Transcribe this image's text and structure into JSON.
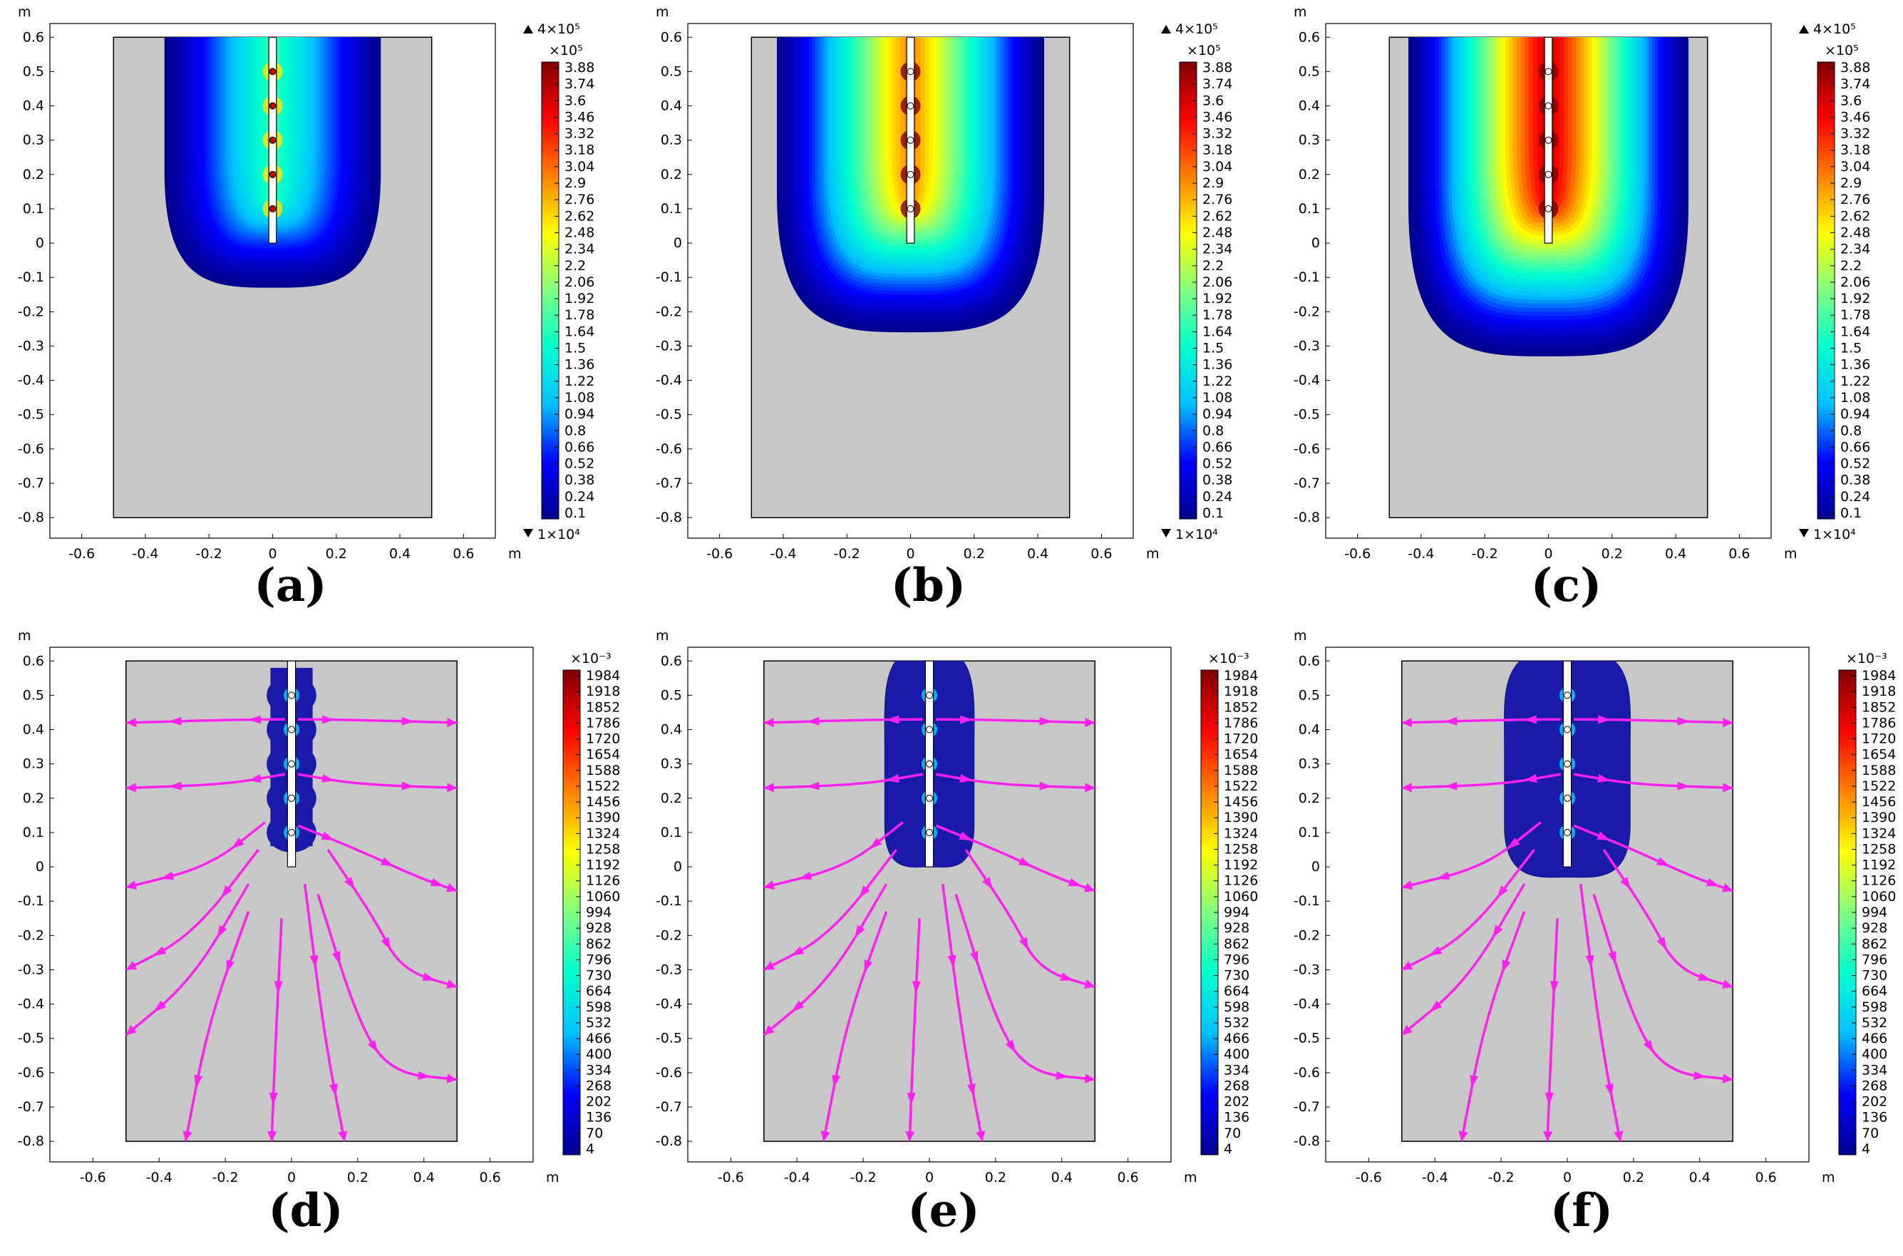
{
  "chart_data": [
    {
      "type": "heatmap",
      "panel_label": "(a)",
      "unit": "m",
      "x": {
        "range": [
          -0.7,
          0.7
        ],
        "ticks": [
          "-0.6",
          "-0.4",
          "-0.2",
          "0",
          "0.2",
          "0.4",
          "0.6"
        ]
      },
      "y": {
        "range": [
          -0.86,
          0.64
        ],
        "ticks": [
          "0.6",
          "0.5",
          "0.4",
          "0.3",
          "0.2",
          "0.1",
          "0",
          "-0.1",
          "-0.2",
          "-0.3",
          "-0.4",
          "-0.5",
          "-0.6",
          "-0.7",
          "-0.8"
        ]
      },
      "domain": {
        "x": [
          -0.5,
          0.5
        ],
        "y": [
          -0.8,
          0.6
        ]
      },
      "colorbar": {
        "max_marker": "4×10⁵",
        "scale": "×10⁵",
        "min_marker": "1×10⁴",
        "labels": [
          "3.88",
          "3.74",
          "3.6",
          "3.46",
          "3.32",
          "3.18",
          "3.04",
          "2.9",
          "2.76",
          "2.62",
          "2.48",
          "2.34",
          "2.2",
          "2.06",
          "1.92",
          "1.78",
          "1.64",
          "1.5",
          "1.36",
          "1.22",
          "1.08",
          "0.94",
          "0.8",
          "0.66",
          "0.52",
          "0.38",
          "0.24",
          "0.1"
        ]
      },
      "field": {
        "halfwidth_m": 0.34,
        "bottom_m": -0.13,
        "intensity": 0.45
      },
      "sources_y": [
        0.5,
        0.4,
        0.3,
        0.2,
        0.1
      ]
    },
    {
      "type": "heatmap",
      "panel_label": "(b)",
      "unit": "m",
      "x": {
        "range": [
          -0.7,
          0.7
        ],
        "ticks": [
          "-0.6",
          "-0.4",
          "-0.2",
          "0",
          "0.2",
          "0.4",
          "0.6"
        ]
      },
      "y": {
        "range": [
          -0.86,
          0.64
        ],
        "ticks": [
          "0.6",
          "0.5",
          "0.4",
          "0.3",
          "0.2",
          "0.1",
          "0",
          "-0.1",
          "-0.2",
          "-0.3",
          "-0.4",
          "-0.5",
          "-0.6",
          "-0.7",
          "-0.8"
        ]
      },
      "domain": {
        "x": [
          -0.5,
          0.5
        ],
        "y": [
          -0.8,
          0.6
        ]
      },
      "colorbar": {
        "max_marker": "4×10⁵",
        "scale": "×10⁵",
        "min_marker": "1×10⁴",
        "labels": [
          "3.88",
          "3.74",
          "3.6",
          "3.46",
          "3.32",
          "3.18",
          "3.04",
          "2.9",
          "2.76",
          "2.62",
          "2.48",
          "2.34",
          "2.2",
          "2.06",
          "1.92",
          "1.78",
          "1.64",
          "1.5",
          "1.36",
          "1.22",
          "1.08",
          "0.94",
          "0.8",
          "0.66",
          "0.52",
          "0.38",
          "0.24",
          "0.1"
        ]
      },
      "field": {
        "halfwidth_m": 0.42,
        "bottom_m": -0.26,
        "intensity": 0.8
      },
      "sources_y": [
        0.5,
        0.4,
        0.3,
        0.2,
        0.1
      ]
    },
    {
      "type": "heatmap",
      "panel_label": "(c)",
      "unit": "m",
      "x": {
        "range": [
          -0.7,
          0.7
        ],
        "ticks": [
          "-0.6",
          "-0.4",
          "-0.2",
          "0",
          "0.2",
          "0.4",
          "0.6"
        ]
      },
      "y": {
        "range": [
          -0.86,
          0.64
        ],
        "ticks": [
          "0.6",
          "0.5",
          "0.4",
          "0.3",
          "0.2",
          "0.1",
          "0",
          "-0.1",
          "-0.2",
          "-0.3",
          "-0.4",
          "-0.5",
          "-0.6",
          "-0.7",
          "-0.8"
        ]
      },
      "domain": {
        "x": [
          -0.5,
          0.5
        ],
        "y": [
          -0.8,
          0.6
        ]
      },
      "colorbar": {
        "max_marker": "4×10⁵",
        "scale": "×10⁵",
        "min_marker": "1×10⁴",
        "labels": [
          "3.88",
          "3.74",
          "3.6",
          "3.46",
          "3.32",
          "3.18",
          "3.04",
          "2.9",
          "2.76",
          "2.62",
          "2.48",
          "2.34",
          "2.2",
          "2.06",
          "1.92",
          "1.78",
          "1.64",
          "1.5",
          "1.36",
          "1.22",
          "1.08",
          "0.94",
          "0.8",
          "0.66",
          "0.52",
          "0.38",
          "0.24",
          "0.1"
        ]
      },
      "field": {
        "halfwidth_m": 0.44,
        "bottom_m": -0.33,
        "intensity": 1.0
      },
      "sources_y": [
        0.5,
        0.4,
        0.3,
        0.2,
        0.1
      ]
    },
    {
      "type": "heatmap",
      "panel_label": "(d)",
      "unit": "m",
      "x": {
        "range": [
          -0.73,
          0.73
        ],
        "ticks": [
          "-0.6",
          "-0.4",
          "-0.2",
          "0",
          "0.2",
          "0.4",
          "0.6"
        ]
      },
      "y": {
        "range": [
          -0.86,
          0.64
        ],
        "ticks": [
          "0.6",
          "0.5",
          "0.4",
          "0.3",
          "0.2",
          "0.1",
          "0",
          "-0.1",
          "-0.2",
          "-0.3",
          "-0.4",
          "-0.5",
          "-0.6",
          "-0.7",
          "-0.8"
        ]
      },
      "domain": {
        "x": [
          -0.5,
          0.5
        ],
        "y": [
          -0.8,
          0.6
        ]
      },
      "colorbar": {
        "scale": "×10⁻³",
        "labels": [
          "1984",
          "1918",
          "1852",
          "1786",
          "1720",
          "1654",
          "1588",
          "1522",
          "1456",
          "1390",
          "1324",
          "1258",
          "1192",
          "1126",
          "1060",
          "994",
          "928",
          "862",
          "796",
          "730",
          "664",
          "598",
          "532",
          "466",
          "400",
          "334",
          "268",
          "202",
          "136",
          "70",
          "4"
        ]
      },
      "zone": {
        "type": "beads",
        "halfwidth_m": 0.075,
        "bottom_m": 0.06
      },
      "sources_y": [
        0.5,
        0.4,
        0.3,
        0.2,
        0.1
      ],
      "streamlines": [
        [
          [
            0.02,
            0.43
          ],
          [
            0.2,
            0.428
          ],
          [
            0.5,
            0.42
          ]
        ],
        [
          [
            -0.02,
            0.43
          ],
          [
            -0.2,
            0.428
          ],
          [
            -0.5,
            0.42
          ]
        ],
        [
          [
            0.02,
            0.27
          ],
          [
            0.2,
            0.24
          ],
          [
            0.5,
            0.23
          ]
        ],
        [
          [
            -0.02,
            0.27
          ],
          [
            -0.2,
            0.24
          ],
          [
            -0.5,
            0.23
          ]
        ],
        [
          [
            0.02,
            0.12
          ],
          [
            0.2,
            0.05
          ],
          [
            0.38,
            -0.03
          ],
          [
            0.5,
            -0.07
          ]
        ],
        [
          [
            -0.08,
            0.13
          ],
          [
            -0.25,
            0.0
          ],
          [
            -0.5,
            -0.06
          ]
        ],
        [
          [
            -0.1,
            0.05
          ],
          [
            -0.3,
            -0.2
          ],
          [
            -0.5,
            -0.3
          ]
        ],
        [
          [
            -0.13,
            -0.05
          ],
          [
            -0.3,
            -0.33
          ],
          [
            -0.5,
            -0.49
          ]
        ],
        [
          [
            -0.13,
            -0.13
          ],
          [
            -0.25,
            -0.45
          ],
          [
            -0.32,
            -0.8
          ]
        ],
        [
          [
            -0.03,
            -0.15
          ],
          [
            -0.05,
            -0.55
          ],
          [
            -0.06,
            -0.8
          ]
        ],
        [
          [
            0.04,
            -0.05
          ],
          [
            0.1,
            -0.5
          ],
          [
            0.16,
            -0.8
          ]
        ],
        [
          [
            0.08,
            -0.08
          ],
          [
            0.2,
            -0.45
          ],
          [
            0.3,
            -0.6
          ],
          [
            0.5,
            -0.62
          ]
        ],
        [
          [
            0.11,
            0.05
          ],
          [
            0.25,
            -0.15
          ],
          [
            0.33,
            -0.3
          ],
          [
            0.5,
            -0.35
          ]
        ]
      ]
    },
    {
      "type": "heatmap",
      "panel_label": "(e)",
      "unit": "m",
      "x": {
        "range": [
          -0.73,
          0.73
        ],
        "ticks": [
          "-0.6",
          "-0.4",
          "-0.2",
          "0",
          "0.2",
          "0.4",
          "0.6"
        ]
      },
      "y": {
        "range": [
          -0.86,
          0.64
        ],
        "ticks": [
          "0.6",
          "0.5",
          "0.4",
          "0.3",
          "0.2",
          "0.1",
          "0",
          "-0.1",
          "-0.2",
          "-0.3",
          "-0.4",
          "-0.5",
          "-0.6",
          "-0.7",
          "-0.8"
        ]
      },
      "domain": {
        "x": [
          -0.5,
          0.5
        ],
        "y": [
          -0.8,
          0.6
        ]
      },
      "colorbar": {
        "scale": "×10⁻³",
        "labels": [
          "1984",
          "1918",
          "1852",
          "1786",
          "1720",
          "1654",
          "1588",
          "1522",
          "1456",
          "1390",
          "1324",
          "1258",
          "1192",
          "1126",
          "1060",
          "994",
          "928",
          "862",
          "796",
          "730",
          "664",
          "598",
          "532",
          "466",
          "400",
          "334",
          "268",
          "202",
          "136",
          "70",
          "4"
        ]
      },
      "zone": {
        "type": "capsule",
        "halfwidth_m": 0.135,
        "bottom_m": 0.0
      },
      "sources_y": [
        0.5,
        0.4,
        0.3,
        0.2,
        0.1
      ],
      "streamlines": [
        [
          [
            0.02,
            0.43
          ],
          [
            0.2,
            0.428
          ],
          [
            0.5,
            0.42
          ]
        ],
        [
          [
            -0.02,
            0.43
          ],
          [
            -0.2,
            0.428
          ],
          [
            -0.5,
            0.42
          ]
        ],
        [
          [
            0.02,
            0.27
          ],
          [
            0.2,
            0.24
          ],
          [
            0.5,
            0.23
          ]
        ],
        [
          [
            -0.02,
            0.27
          ],
          [
            -0.2,
            0.24
          ],
          [
            -0.5,
            0.23
          ]
        ],
        [
          [
            0.02,
            0.12
          ],
          [
            0.2,
            0.05
          ],
          [
            0.38,
            -0.03
          ],
          [
            0.5,
            -0.07
          ]
        ],
        [
          [
            -0.08,
            0.13
          ],
          [
            -0.25,
            0.0
          ],
          [
            -0.5,
            -0.06
          ]
        ],
        [
          [
            -0.1,
            0.05
          ],
          [
            -0.3,
            -0.2
          ],
          [
            -0.5,
            -0.3
          ]
        ],
        [
          [
            -0.13,
            -0.05
          ],
          [
            -0.3,
            -0.33
          ],
          [
            -0.5,
            -0.49
          ]
        ],
        [
          [
            -0.13,
            -0.13
          ],
          [
            -0.25,
            -0.45
          ],
          [
            -0.32,
            -0.8
          ]
        ],
        [
          [
            -0.03,
            -0.15
          ],
          [
            -0.05,
            -0.55
          ],
          [
            -0.06,
            -0.8
          ]
        ],
        [
          [
            0.04,
            -0.05
          ],
          [
            0.1,
            -0.5
          ],
          [
            0.16,
            -0.8
          ]
        ],
        [
          [
            0.08,
            -0.08
          ],
          [
            0.2,
            -0.45
          ],
          [
            0.3,
            -0.6
          ],
          [
            0.5,
            -0.62
          ]
        ],
        [
          [
            0.11,
            0.05
          ],
          [
            0.25,
            -0.15
          ],
          [
            0.33,
            -0.3
          ],
          [
            0.5,
            -0.35
          ]
        ]
      ]
    },
    {
      "type": "heatmap",
      "panel_label": "(f)",
      "unit": "m",
      "x": {
        "range": [
          -0.73,
          0.73
        ],
        "ticks": [
          "-0.6",
          "-0.4",
          "-0.2",
          "0",
          "0.2",
          "0.4",
          "0.6"
        ]
      },
      "y": {
        "range": [
          -0.86,
          0.64
        ],
        "ticks": [
          "0.6",
          "0.5",
          "0.4",
          "0.3",
          "0.2",
          "0.1",
          "0",
          "-0.1",
          "-0.2",
          "-0.3",
          "-0.4",
          "-0.5",
          "-0.6",
          "-0.7",
          "-0.8"
        ]
      },
      "domain": {
        "x": [
          -0.5,
          0.5
        ],
        "y": [
          -0.8,
          0.6
        ]
      },
      "colorbar": {
        "scale": "×10⁻³",
        "labels": [
          "1984",
          "1918",
          "1852",
          "1786",
          "1720",
          "1654",
          "1588",
          "1522",
          "1456",
          "1390",
          "1324",
          "1258",
          "1192",
          "1126",
          "1060",
          "994",
          "928",
          "862",
          "796",
          "730",
          "664",
          "598",
          "532",
          "466",
          "400",
          "334",
          "268",
          "202",
          "136",
          "70",
          "4"
        ]
      },
      "zone": {
        "type": "capsule",
        "halfwidth_m": 0.19,
        "bottom_m": -0.03
      },
      "sources_y": [
        0.5,
        0.4,
        0.3,
        0.2,
        0.1
      ],
      "streamlines": [
        [
          [
            0.02,
            0.43
          ],
          [
            0.2,
            0.428
          ],
          [
            0.5,
            0.42
          ]
        ],
        [
          [
            -0.02,
            0.43
          ],
          [
            -0.2,
            0.428
          ],
          [
            -0.5,
            0.42
          ]
        ],
        [
          [
            0.02,
            0.27
          ],
          [
            0.2,
            0.24
          ],
          [
            0.5,
            0.23
          ]
        ],
        [
          [
            -0.02,
            0.27
          ],
          [
            -0.2,
            0.24
          ],
          [
            -0.5,
            0.23
          ]
        ],
        [
          [
            0.02,
            0.12
          ],
          [
            0.2,
            0.05
          ],
          [
            0.38,
            -0.03
          ],
          [
            0.5,
            -0.07
          ]
        ],
        [
          [
            -0.08,
            0.13
          ],
          [
            -0.25,
            0.0
          ],
          [
            -0.5,
            -0.06
          ]
        ],
        [
          [
            -0.1,
            0.05
          ],
          [
            -0.3,
            -0.2
          ],
          [
            -0.5,
            -0.3
          ]
        ],
        [
          [
            -0.13,
            -0.05
          ],
          [
            -0.3,
            -0.33
          ],
          [
            -0.5,
            -0.49
          ]
        ],
        [
          [
            -0.13,
            -0.13
          ],
          [
            -0.25,
            -0.45
          ],
          [
            -0.32,
            -0.8
          ]
        ],
        [
          [
            -0.03,
            -0.15
          ],
          [
            -0.05,
            -0.55
          ],
          [
            -0.06,
            -0.8
          ]
        ],
        [
          [
            0.04,
            -0.05
          ],
          [
            0.1,
            -0.5
          ],
          [
            0.16,
            -0.8
          ]
        ],
        [
          [
            0.08,
            -0.08
          ],
          [
            0.2,
            -0.45
          ],
          [
            0.3,
            -0.6
          ],
          [
            0.5,
            -0.62
          ]
        ],
        [
          [
            0.11,
            0.05
          ],
          [
            0.25,
            -0.15
          ],
          [
            0.33,
            -0.3
          ],
          [
            0.5,
            -0.35
          ]
        ]
      ]
    }
  ],
  "colors": {
    "domain_fill": "#c8c8c8",
    "streamline": "#ff22ee",
    "background": "#ffffff",
    "cmap": [
      "#00008f",
      "#0000ff",
      "#00bfff",
      "#00ffd0",
      "#80ff80",
      "#ffff00",
      "#ff8000",
      "#ff0000",
      "#800000"
    ]
  }
}
